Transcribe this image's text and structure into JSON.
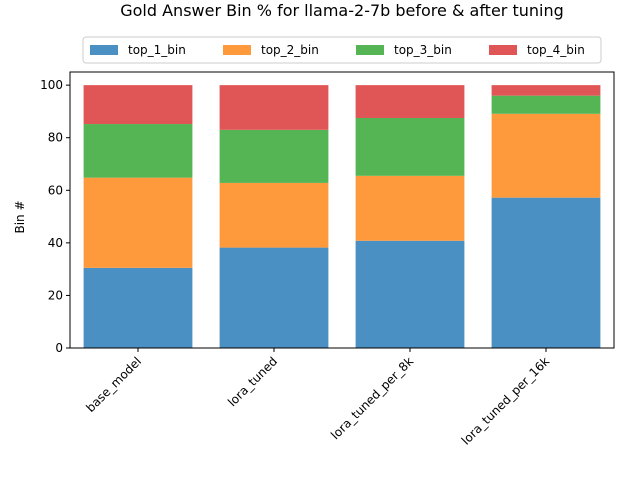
{
  "chart_data": {
    "type": "bar",
    "stacked": true,
    "title": "Gold Answer Bin % for llama-2-7b before & after tuning",
    "xlabel": "",
    "ylabel": "Bin #",
    "ylim": [
      0,
      105
    ],
    "yticks": [
      0,
      20,
      40,
      60,
      80,
      100
    ],
    "grid": false,
    "legend_placement": "top-center",
    "categories": [
      "base_model",
      "lora_tuned",
      "lora_tuned_per_8k",
      "lora_tuned_per_16k"
    ],
    "series": [
      {
        "name": "top_1_bin",
        "color": "#4a90c2",
        "values": [
          30.5,
          38.2,
          40.8,
          57.2
        ]
      },
      {
        "name": "top_2_bin",
        "color": "#ff9a3c",
        "values": [
          34.3,
          24.6,
          24.7,
          31.9
        ]
      },
      {
        "name": "top_3_bin",
        "color": "#55b555",
        "values": [
          20.4,
          20.2,
          22.0,
          6.9
        ]
      },
      {
        "name": "top_4_bin",
        "color": "#e05555",
        "values": [
          14.8,
          17.0,
          12.5,
          4.0
        ]
      }
    ]
  }
}
